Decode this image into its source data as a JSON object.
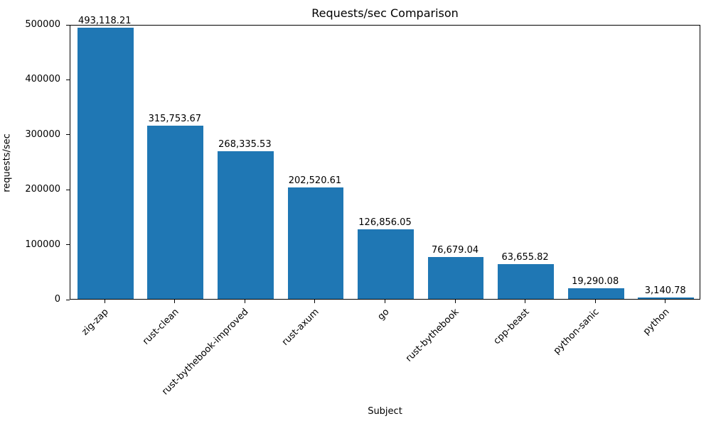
{
  "chart_data": {
    "type": "bar",
    "title": "Requests/sec Comparison",
    "xlabel": "Subject",
    "ylabel": "requests/sec",
    "categories": [
      "zig-zap",
      "rust-clean",
      "rust-bythebook-improved",
      "rust-axum",
      "go",
      "rust-bythebook",
      "cpp-beast",
      "python-sanic",
      "python"
    ],
    "values": [
      493118.21,
      315753.67,
      268335.53,
      202520.61,
      126856.05,
      76679.04,
      63655.82,
      19290.08,
      3140.78
    ],
    "value_labels": [
      "493,118.21",
      "315,753.67",
      "268,335.53",
      "202,520.61",
      "126,856.05",
      "76,679.04",
      "63,655.82",
      "19,290.08",
      "3,140.78"
    ],
    "yticks": [
      0,
      100000,
      200000,
      300000,
      400000,
      500000
    ],
    "ytick_labels": [
      "0",
      "100000",
      "200000",
      "300000",
      "400000",
      "500000"
    ],
    "ylim": [
      0,
      500000
    ],
    "bar_color": "#1f77b4",
    "grid": false,
    "legend_position": "none"
  }
}
